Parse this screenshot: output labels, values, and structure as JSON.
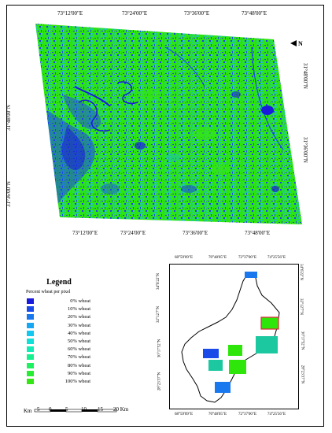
{
  "main_map": {
    "top_lon_labels": [
      "73°12'00\"E",
      "73°24'00\"E",
      "73°36'00\"E",
      "73°48'00\"E"
    ],
    "bottom_lon_labels": [
      "73°12'00\"E",
      "73°24'00\"E",
      "73°36'00\"E",
      "73°48'00\"E"
    ],
    "left_lat_labels": [
      "31°48'00\"N",
      "31°36'00\"N"
    ],
    "right_lat_labels": [
      "31°48'00\"N",
      "31°36'00\"N"
    ],
    "north_arrow": "N",
    "colors": {
      "low": "#1f3ff0",
      "high": "#2ee60a",
      "mid": "#1cc8a0"
    }
  },
  "legend": {
    "title": "Legend",
    "subtitle": "Percent wheat per pixel",
    "items": [
      {
        "label": "0% wheat",
        "color": "#1a1adc"
      },
      {
        "label": "10% wheat",
        "color": "#1a4be8"
      },
      {
        "label": "20% wheat",
        "color": "#1a78ee"
      },
      {
        "label": "30% wheat",
        "color": "#16a6f2"
      },
      {
        "label": "40% wheat",
        "color": "#12c8f0"
      },
      {
        "label": "50% wheat",
        "color": "#12e0d8"
      },
      {
        "label": "60% wheat",
        "color": "#14ecb8"
      },
      {
        "label": "70% wheat",
        "color": "#18f090"
      },
      {
        "label": "80% wheat",
        "color": "#1ef060"
      },
      {
        "label": "90% wheat",
        "color": "#28ec34"
      },
      {
        "label": "100% wheat",
        "color": "#34e614"
      }
    ]
  },
  "scale_bar": {
    "unit_left": "Km",
    "ticks": [
      "5",
      "0",
      "5",
      "10",
      "15",
      "20 Km"
    ]
  },
  "inset": {
    "top_lon_labels": [
      "68°59'09\"E",
      "70°48'05\"E",
      "72°37'00\"E",
      "74°25'56\"E"
    ],
    "bottom_lon_labels": [
      "68°59'09\"E",
      "70°48'05\"E",
      "72°37'00\"E",
      "74°25'56\"E"
    ],
    "left_lat_labels": [
      "34°6'22\"N",
      "32°12'7\"N",
      "30°17'52\"N",
      "28°23'37\"N"
    ],
    "right_lat_labels": [
      "34°6'22\"N",
      "32°12'7\"N",
      "30°17'52\"N",
      "28°23'37\"N"
    ]
  }
}
